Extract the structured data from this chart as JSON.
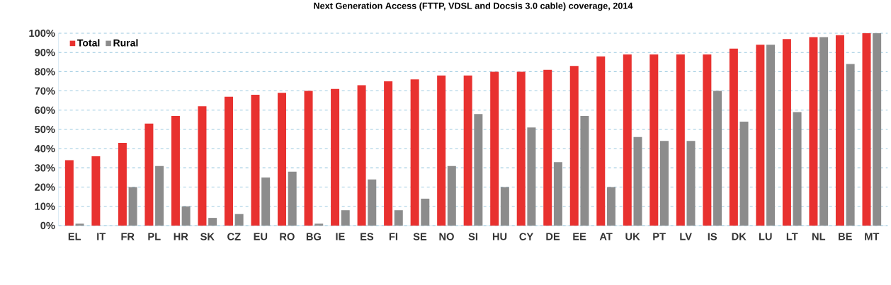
{
  "chart_data": {
    "type": "bar",
    "title": "Next Generation Access (FTTP, VDSL and Docsis 3.0 cable) coverage, 2014",
    "categories": [
      "EL",
      "IT",
      "FR",
      "PL",
      "HR",
      "SK",
      "CZ",
      "EU",
      "RO",
      "BG",
      "IE",
      "ES",
      "FI",
      "SE",
      "NO",
      "SI",
      "HU",
      "CY",
      "DE",
      "EE",
      "AT",
      "UK",
      "PT",
      "LV",
      "IS",
      "DK",
      "LU",
      "LT",
      "NL",
      "BE",
      "MT"
    ],
    "series": [
      {
        "name": "Total",
        "color": "#e8312f",
        "values": [
          34,
          36,
          43,
          53,
          57,
          62,
          67,
          68,
          69,
          70,
          71,
          73,
          75,
          76,
          78,
          78,
          80,
          80,
          81,
          83,
          88,
          89,
          89,
          89,
          89,
          92,
          94,
          97,
          98,
          99,
          100
        ]
      },
      {
        "name": "Rural",
        "color": "#8c8c8c",
        "values": [
          1,
          0,
          20,
          31,
          10,
          4,
          6,
          25,
          28,
          1,
          8,
          24,
          8,
          14,
          31,
          58,
          20,
          51,
          33,
          57,
          20,
          46,
          44,
          44,
          70,
          54,
          94,
          59,
          98,
          84,
          100
        ]
      }
    ],
    "ylim": [
      0,
      100
    ],
    "yticks": [
      {
        "value": 0,
        "label": "0%"
      },
      {
        "value": 10,
        "label": "10%"
      },
      {
        "value": 20,
        "label": "20%"
      },
      {
        "value": 30,
        "label": "30%"
      },
      {
        "value": 40,
        "label": "40%"
      },
      {
        "value": 50,
        "label": "50%"
      },
      {
        "value": 60,
        "label": "60%"
      },
      {
        "value": 70,
        "label": "70%"
      },
      {
        "value": 80,
        "label": "80%"
      },
      {
        "value": 90,
        "label": "90%"
      },
      {
        "value": 100,
        "label": "100%"
      }
    ],
    "grid": "y",
    "legend": "top left"
  }
}
